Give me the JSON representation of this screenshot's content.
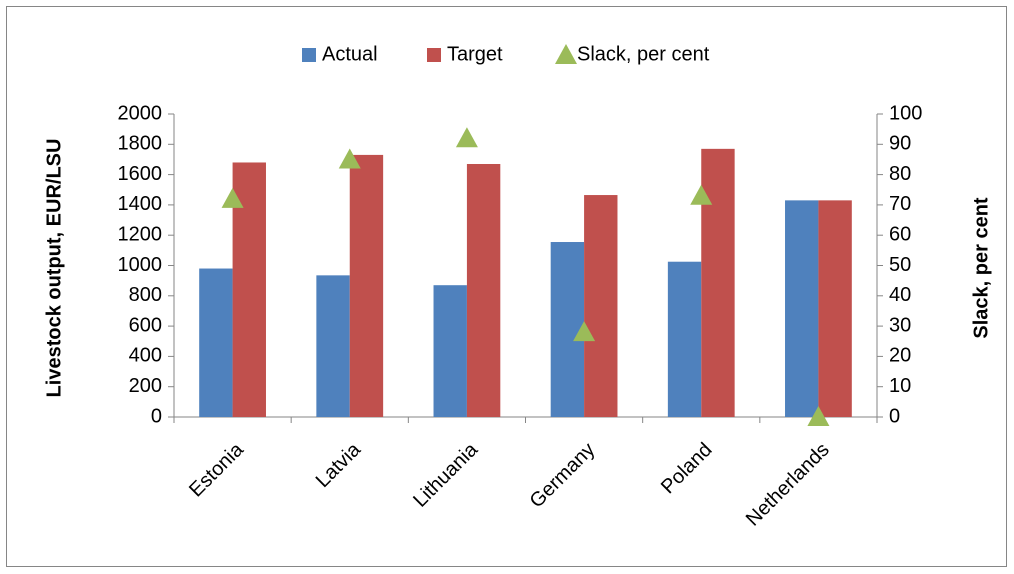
{
  "chart_data": {
    "type": "bar",
    "categories": [
      "Estonia",
      "Latvia",
      "Lithuania",
      "Germany",
      "Poland",
      "Netherlands"
    ],
    "series": [
      {
        "name": "Actual",
        "type": "bar",
        "color": "#4f81bd",
        "values": [
          980,
          935,
          870,
          1155,
          1025,
          1430
        ]
      },
      {
        "name": "Target",
        "type": "bar",
        "color": "#c0504d",
        "values": [
          1680,
          1730,
          1670,
          1465,
          1770,
          1430
        ]
      },
      {
        "name": "Slack, per cent",
        "type": "scatter",
        "marker": "triangle",
        "axis": "y2",
        "color": "#9bbb59",
        "values": [
          72,
          85,
          92,
          28,
          73,
          0
        ]
      }
    ],
    "ylabel": "Livestock output, EUR/LSU",
    "y2label": "Slack, per cent",
    "ylim": [
      0,
      2000
    ],
    "yticks": [
      0,
      200,
      400,
      600,
      800,
      1000,
      1200,
      1400,
      1600,
      1800,
      2000
    ],
    "y2lim": [
      0,
      100
    ],
    "y2ticks": [
      0,
      10,
      20,
      30,
      40,
      50,
      60,
      70,
      80,
      90,
      100
    ],
    "legend": "top",
    "grid": false
  }
}
